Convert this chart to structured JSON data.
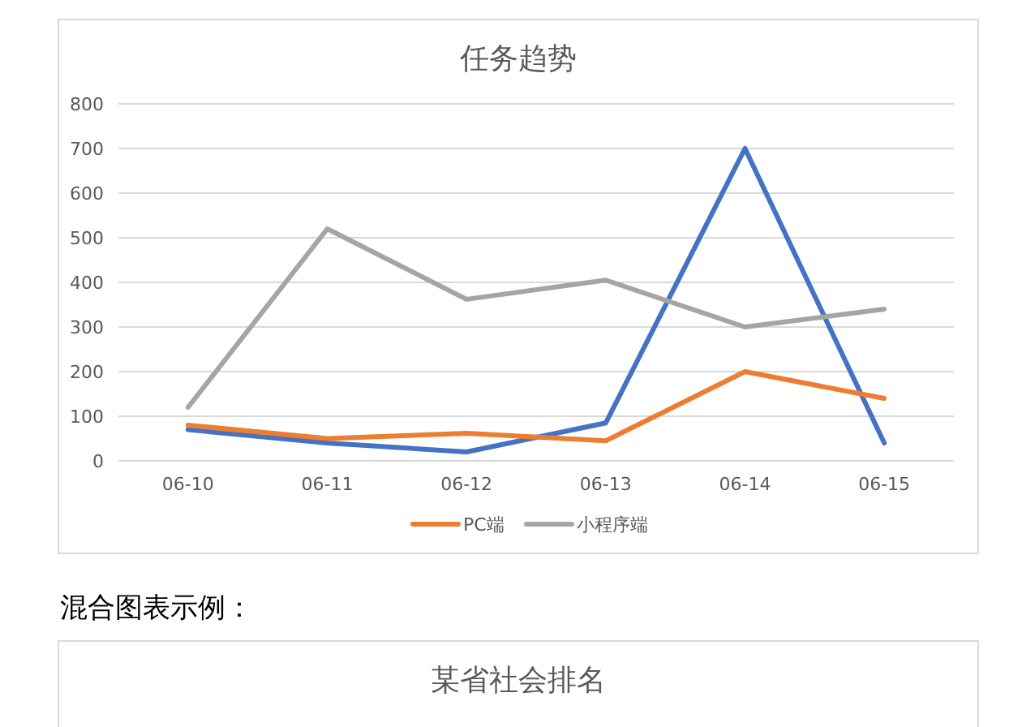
{
  "chart_data": [
    {
      "type": "line",
      "title": "任务趋势",
      "categories": [
        "06-10",
        "06-11",
        "06-12",
        "06-13",
        "06-14",
        "06-15"
      ],
      "series": [
        {
          "color": "#4472c4",
          "values": [
            70,
            40,
            20,
            85,
            700,
            40
          ]
        },
        {
          "name": "PC端",
          "color": "#ed7d31",
          "values": [
            80,
            50,
            62,
            45,
            200,
            140
          ]
        },
        {
          "name": "小程序端",
          "color": "#a5a5a5",
          "values": [
            120,
            520,
            362,
            405,
            300,
            340
          ]
        }
      ],
      "ylim": [
        0,
        800
      ],
      "yticks": [
        0,
        100,
        200,
        300,
        400,
        500,
        600,
        700,
        800
      ],
      "grid": "y",
      "legend": "bottom",
      "marker": "none",
      "line_style": "solid"
    },
    {
      "type": "other",
      "title": "某省社会排名",
      "annotations": [
        "混合图表示例："
      ]
    }
  ]
}
